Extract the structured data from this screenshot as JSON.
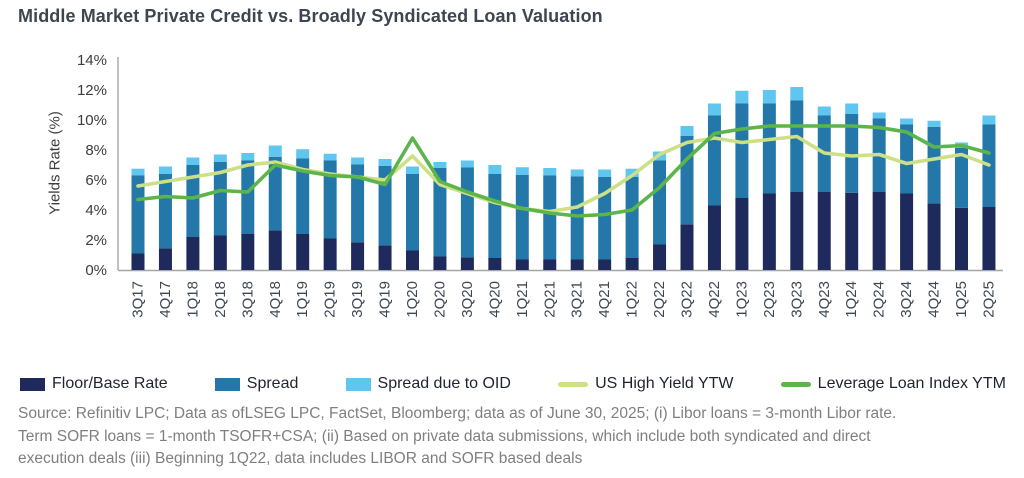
{
  "title": "Middle Market Private Credit vs. Broadly Syndicated Loan Valuation",
  "chart_data": {
    "type": "bar",
    "subtype": "stacked-bars-with-overlay-lines",
    "title": "Middle Market Private Credit vs. Broadly Syndicated Loan Valuation",
    "xlabel": "",
    "ylabel": "Yields Rate (%)",
    "ylim": [
      0,
      14
    ],
    "ytick_step": 2,
    "ytick_suffix": "%",
    "grid": false,
    "legend_position": "bottom",
    "categories": [
      "3Q17",
      "4Q17",
      "1Q18",
      "2Q18",
      "3Q18",
      "4Q18",
      "1Q19",
      "2Q19",
      "3Q19",
      "4Q19",
      "1Q20",
      "2Q20",
      "3Q20",
      "4Q20",
      "1Q21",
      "2Q21",
      "3Q21",
      "4Q21",
      "1Q22",
      "2Q22",
      "3Q22",
      "4Q22",
      "1Q23",
      "2Q23",
      "3Q23",
      "4Q23",
      "1Q24",
      "2Q24",
      "3Q24",
      "4Q24",
      "1Q25",
      "2Q25"
    ],
    "bar_series": [
      {
        "name": "Floor/Base Rate",
        "color": "#1F2A5C",
        "values": [
          1.1,
          1.45,
          2.2,
          2.3,
          2.4,
          2.65,
          2.4,
          2.1,
          1.85,
          1.65,
          1.3,
          0.9,
          0.85,
          0.8,
          0.7,
          0.7,
          0.7,
          0.7,
          0.8,
          1.7,
          3.05,
          4.3,
          4.8,
          5.1,
          5.2,
          5.2,
          5.15,
          5.2,
          5.1,
          4.45,
          4.15,
          4.2
        ]
      },
      {
        "name": "Spread",
        "color": "#2478A9",
        "values": [
          5.2,
          4.95,
          4.8,
          4.9,
          4.9,
          4.9,
          5.05,
          5.2,
          5.2,
          5.3,
          5.1,
          5.9,
          6.0,
          5.6,
          5.65,
          5.6,
          5.55,
          5.5,
          5.4,
          5.6,
          5.9,
          6.0,
          6.3,
          6.0,
          6.1,
          5.1,
          5.25,
          4.9,
          4.6,
          5.1,
          4.0,
          5.5
        ]
      },
      {
        "name": "Spread due to OID",
        "color": "#5FC6F0",
        "values": [
          0.45,
          0.5,
          0.5,
          0.5,
          0.5,
          0.75,
          0.6,
          0.45,
          0.45,
          0.45,
          0.5,
          0.4,
          0.45,
          0.6,
          0.5,
          0.5,
          0.45,
          0.5,
          0.55,
          0.6,
          0.65,
          0.8,
          0.85,
          0.9,
          0.9,
          0.6,
          0.7,
          0.4,
          0.4,
          0.4,
          0.35,
          0.6
        ]
      }
    ],
    "line_series": [
      {
        "name": "US High Yield YTW",
        "color": "#CDE086",
        "values": [
          5.6,
          5.9,
          6.2,
          6.5,
          7.0,
          7.2,
          6.7,
          6.4,
          6.2,
          6.0,
          7.6,
          5.7,
          5.1,
          4.5,
          4.1,
          3.9,
          4.2,
          5.1,
          6.3,
          7.7,
          8.5,
          8.8,
          8.5,
          8.7,
          8.9,
          7.8,
          7.6,
          7.7,
          7.1,
          7.4,
          7.7,
          7.0
        ]
      },
      {
        "name": "Leverage Loan Index YTM",
        "color": "#5CB54A",
        "values": [
          4.7,
          4.9,
          4.8,
          5.3,
          5.2,
          7.0,
          6.6,
          6.3,
          6.2,
          5.7,
          8.8,
          5.9,
          5.2,
          4.6,
          4.1,
          3.8,
          3.6,
          3.7,
          4.0,
          5.5,
          7.4,
          9.1,
          9.4,
          9.6,
          9.6,
          9.6,
          9.6,
          9.5,
          9.2,
          8.2,
          8.3,
          7.8
        ]
      }
    ]
  },
  "source": {
    "lines": [
      "Source: Refinitiv LPC; Data as ofLSEG LPC, FactSet, Bloomberg; data as of June 30, 2025; (i) Libor loans = 3-month Libor rate.",
      "Term SOFR loans = 1-month TSOFR+CSA; (ii) Based on private data submissions, which include both syndicated and direct",
      "execution deals (iii) Beginning 1Q22, data includes LIBOR and SOFR based deals"
    ]
  },
  "colors": {
    "c-title": "#3B4651",
    "c-axis": "#A6A6A6",
    "c-ytick": "#3D3D3D",
    "c-xtick": "#3E4853",
    "c-legend": "#1E2430",
    "c-source": "#7F7F7F"
  }
}
